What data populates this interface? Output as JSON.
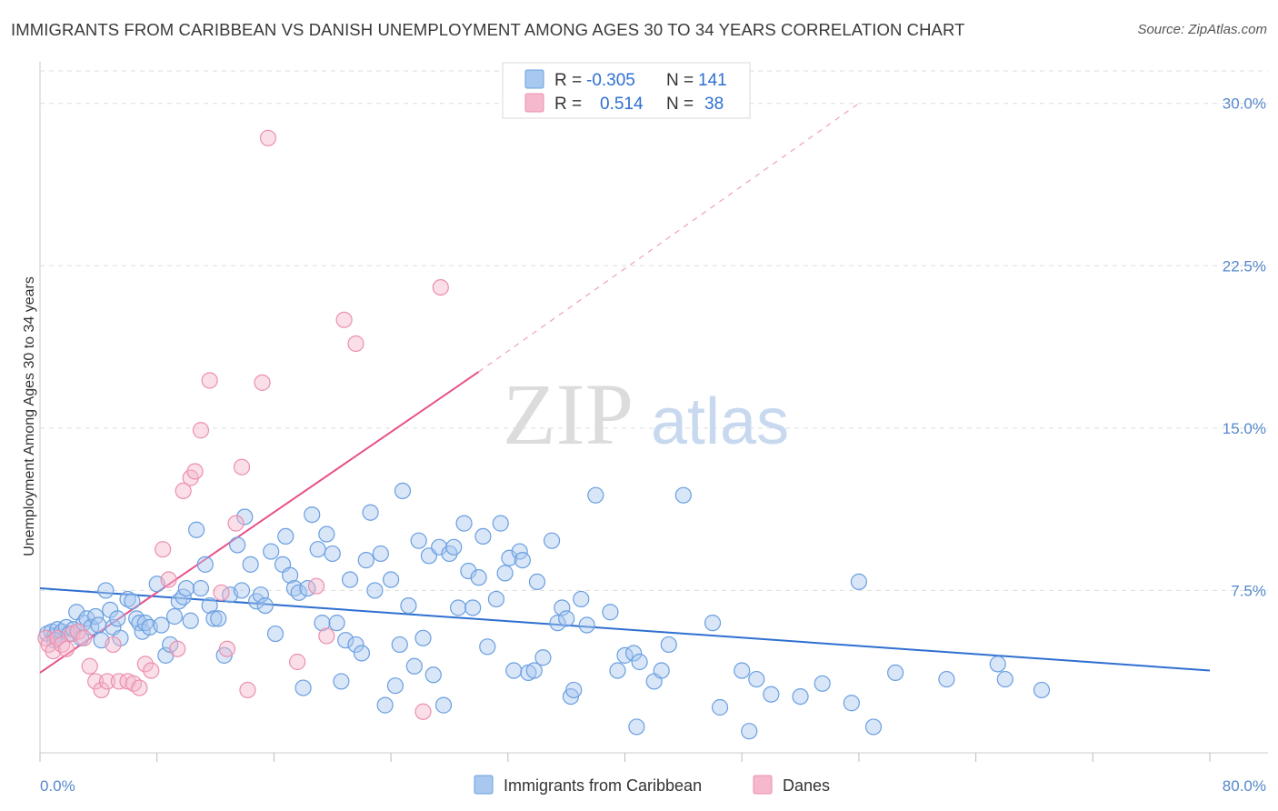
{
  "header": {
    "title": "IMMIGRANTS FROM CARIBBEAN VS DANISH UNEMPLOYMENT AMONG AGES 30 TO 34 YEARS CORRELATION CHART",
    "source": "Source: ZipAtlas.com"
  },
  "watermark": {
    "zip": "ZIP",
    "atlas": "atlas"
  },
  "legend_top": {
    "rows": [
      {
        "r_label": "R =",
        "r_value": "-0.305",
        "n_label": "N =",
        "n_value": "141"
      },
      {
        "r_label": "R =",
        "r_value": "0.514",
        "n_label": "N =",
        "n_value": "38"
      }
    ]
  },
  "legend_bottom": {
    "items": [
      "Immigrants from Caribbean",
      "Danes"
    ]
  },
  "colors": {
    "blue_fill": "#a8c8f0",
    "blue_stroke": "#6a9fe0",
    "blue_line": "#2f6fd0",
    "pink_fill": "#f5b8cc",
    "pink_stroke": "#ec8fae",
    "pink_line": "#e8508a",
    "grid": "#dddddd",
    "tick_label": "#5588cc"
  },
  "chart_data": {
    "type": "scatter",
    "title": "IMMIGRANTS FROM CARIBBEAN VS DANISH UNEMPLOYMENT AMONG AGES 30 TO 34 YEARS CORRELATION CHART",
    "xlabel": "",
    "ylabel": "Unemployment Among Ages 30 to 34 years",
    "xlim": [
      0,
      80
    ],
    "ylim": [
      0,
      31.5
    ],
    "x_tick_labels": [
      "0.0%",
      "80.0%"
    ],
    "y_ticks": [
      7.5,
      15.0,
      22.5,
      30.0
    ],
    "y_tick_labels": [
      "7.5%",
      "15.0%",
      "22.5%",
      "30.0%"
    ],
    "grid": true,
    "legend_position": "top-center",
    "series": [
      {
        "name": "Immigrants from Caribbean",
        "r": -0.305,
        "n": 141,
        "trend": {
          "x0": 0,
          "y0": 7.6,
          "x1": 80,
          "y1": 3.8
        },
        "points": [
          [
            0.5,
            5.5
          ],
          [
            0.8,
            5.6
          ],
          [
            1.0,
            5.4
          ],
          [
            1.2,
            5.7
          ],
          [
            1.5,
            5.6
          ],
          [
            1.8,
            5.8
          ],
          [
            2.0,
            5.5
          ],
          [
            2.3,
            5.7
          ],
          [
            2.5,
            6.5
          ],
          [
            2.8,
            5.3
          ],
          [
            3.0,
            6.0
          ],
          [
            3.2,
            6.2
          ],
          [
            3.5,
            5.8
          ],
          [
            3.8,
            6.3
          ],
          [
            4.0,
            5.9
          ],
          [
            4.2,
            5.2
          ],
          [
            4.5,
            7.5
          ],
          [
            4.8,
            6.6
          ],
          [
            5.0,
            5.8
          ],
          [
            5.3,
            6.2
          ],
          [
            5.5,
            5.3
          ],
          [
            6.0,
            7.1
          ],
          [
            6.3,
            7.0
          ],
          [
            6.6,
            6.2
          ],
          [
            6.8,
            6.0
          ],
          [
            7.0,
            5.6
          ],
          [
            7.2,
            6.0
          ],
          [
            7.5,
            5.8
          ],
          [
            8.0,
            7.8
          ],
          [
            8.3,
            5.9
          ],
          [
            8.6,
            4.5
          ],
          [
            8.9,
            5.0
          ],
          [
            9.2,
            6.3
          ],
          [
            9.5,
            7.0
          ],
          [
            9.8,
            7.2
          ],
          [
            10.0,
            7.6
          ],
          [
            10.3,
            6.1
          ],
          [
            10.7,
            10.3
          ],
          [
            11.0,
            7.6
          ],
          [
            11.3,
            8.7
          ],
          [
            11.6,
            6.8
          ],
          [
            11.9,
            6.2
          ],
          [
            12.2,
            6.2
          ],
          [
            12.6,
            4.5
          ],
          [
            13.0,
            7.3
          ],
          [
            13.5,
            9.6
          ],
          [
            13.8,
            7.5
          ],
          [
            14.0,
            10.9
          ],
          [
            14.4,
            8.7
          ],
          [
            14.8,
            7.0
          ],
          [
            15.1,
            7.3
          ],
          [
            15.4,
            6.8
          ],
          [
            15.8,
            9.3
          ],
          [
            16.1,
            5.5
          ],
          [
            16.6,
            8.7
          ],
          [
            16.8,
            10.0
          ],
          [
            17.1,
            8.2
          ],
          [
            17.4,
            7.6
          ],
          [
            17.7,
            7.4
          ],
          [
            18.0,
            3.0
          ],
          [
            18.3,
            7.6
          ],
          [
            18.6,
            11.0
          ],
          [
            19.0,
            9.4
          ],
          [
            19.3,
            6.0
          ],
          [
            19.6,
            10.1
          ],
          [
            20.0,
            9.2
          ],
          [
            20.3,
            6.0
          ],
          [
            20.6,
            3.3
          ],
          [
            20.9,
            5.2
          ],
          [
            21.2,
            8.0
          ],
          [
            21.6,
            5.0
          ],
          [
            22.0,
            4.6
          ],
          [
            22.3,
            8.9
          ],
          [
            22.6,
            11.1
          ],
          [
            22.9,
            7.5
          ],
          [
            23.3,
            9.2
          ],
          [
            23.6,
            2.2
          ],
          [
            24.0,
            8.0
          ],
          [
            24.3,
            3.1
          ],
          [
            24.6,
            5.0
          ],
          [
            24.8,
            12.1
          ],
          [
            25.2,
            6.8
          ],
          [
            25.6,
            4.0
          ],
          [
            25.9,
            9.8
          ],
          [
            26.2,
            5.3
          ],
          [
            26.6,
            9.1
          ],
          [
            26.9,
            3.6
          ],
          [
            27.3,
            9.5
          ],
          [
            27.6,
            2.2
          ],
          [
            28.0,
            9.2
          ],
          [
            28.3,
            9.5
          ],
          [
            28.6,
            6.7
          ],
          [
            29.0,
            10.6
          ],
          [
            29.3,
            8.4
          ],
          [
            29.6,
            6.7
          ],
          [
            30.0,
            8.1
          ],
          [
            30.3,
            10.0
          ],
          [
            30.6,
            4.9
          ],
          [
            31.2,
            7.1
          ],
          [
            31.5,
            10.6
          ],
          [
            31.8,
            8.3
          ],
          [
            32.1,
            9.0
          ],
          [
            32.4,
            3.8
          ],
          [
            32.8,
            9.3
          ],
          [
            33.0,
            8.9
          ],
          [
            33.4,
            3.7
          ],
          [
            33.8,
            3.8
          ],
          [
            34.0,
            7.9
          ],
          [
            34.4,
            4.4
          ],
          [
            35.0,
            9.8
          ],
          [
            35.4,
            6.0
          ],
          [
            35.7,
            6.7
          ],
          [
            36.0,
            6.2
          ],
          [
            36.3,
            2.6
          ],
          [
            36.5,
            2.9
          ],
          [
            37.0,
            7.1
          ],
          [
            37.4,
            5.9
          ],
          [
            38.0,
            11.9
          ],
          [
            39.0,
            6.5
          ],
          [
            39.5,
            3.8
          ],
          [
            40.0,
            4.5
          ],
          [
            40.6,
            4.6
          ],
          [
            40.8,
            1.2
          ],
          [
            41.0,
            4.2
          ],
          [
            42.0,
            3.3
          ],
          [
            42.5,
            3.8
          ],
          [
            43.0,
            5.0
          ],
          [
            44.0,
            11.9
          ],
          [
            46.0,
            6.0
          ],
          [
            46.5,
            2.1
          ],
          [
            48.0,
            3.8
          ],
          [
            48.5,
            1.0
          ],
          [
            49.0,
            3.4
          ],
          [
            50.0,
            2.7
          ],
          [
            52.0,
            2.6
          ],
          [
            53.5,
            3.2
          ],
          [
            55.5,
            2.3
          ],
          [
            56.0,
            7.9
          ],
          [
            57.0,
            1.2
          ],
          [
            58.5,
            3.7
          ],
          [
            62.0,
            3.4
          ],
          [
            65.5,
            4.1
          ],
          [
            66.0,
            3.4
          ],
          [
            68.5,
            2.9
          ],
          [
            1.0,
            5.2
          ]
        ]
      },
      {
        "name": "Danes",
        "r": 0.514,
        "n": 38,
        "trend": {
          "x0": 0,
          "y0": 3.7,
          "x1": 30,
          "y1": 17.6,
          "dash_to_x": 56,
          "dash_to_y": 30.0
        },
        "points": [
          [
            0.4,
            5.3
          ],
          [
            0.6,
            5.0
          ],
          [
            0.9,
            4.7
          ],
          [
            1.2,
            5.3
          ],
          [
            1.5,
            5.0
          ],
          [
            1.8,
            4.8
          ],
          [
            2.2,
            5.5
          ],
          [
            2.6,
            5.6
          ],
          [
            3.0,
            5.3
          ],
          [
            3.4,
            4.0
          ],
          [
            3.8,
            3.3
          ],
          [
            4.2,
            2.9
          ],
          [
            4.6,
            3.3
          ],
          [
            5.0,
            5.0
          ],
          [
            5.4,
            3.3
          ],
          [
            6.0,
            3.3
          ],
          [
            6.4,
            3.2
          ],
          [
            6.8,
            3.0
          ],
          [
            7.2,
            4.1
          ],
          [
            7.6,
            3.8
          ],
          [
            8.4,
            9.4
          ],
          [
            8.8,
            8.0
          ],
          [
            9.4,
            4.8
          ],
          [
            9.8,
            12.1
          ],
          [
            10.3,
            12.7
          ],
          [
            10.6,
            13.0
          ],
          [
            11.0,
            14.9
          ],
          [
            11.6,
            17.2
          ],
          [
            12.4,
            7.4
          ],
          [
            12.8,
            4.8
          ],
          [
            13.4,
            10.6
          ],
          [
            13.8,
            13.2
          ],
          [
            14.2,
            2.9
          ],
          [
            15.2,
            17.1
          ],
          [
            15.6,
            28.4
          ],
          [
            17.6,
            4.2
          ],
          [
            18.9,
            7.7
          ],
          [
            19.6,
            5.4
          ],
          [
            20.8,
            20.0
          ],
          [
            21.6,
            18.9
          ],
          [
            26.2,
            1.9
          ],
          [
            27.4,
            21.5
          ]
        ]
      }
    ]
  }
}
